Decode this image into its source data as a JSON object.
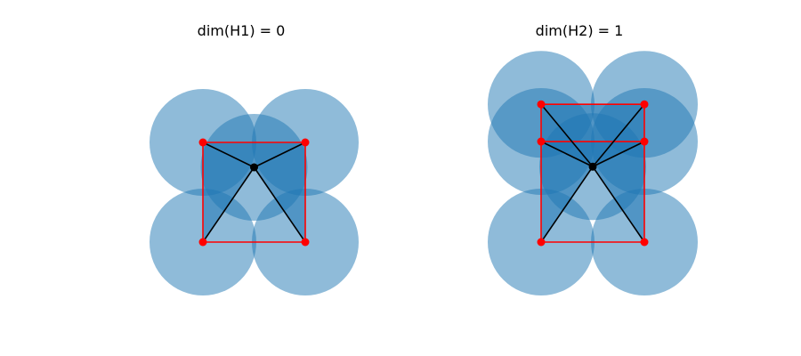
{
  "panels": [
    {
      "title": "dim(H1) = 0",
      "vertices": [
        [
          0,
          0
        ],
        [
          1,
          0
        ],
        [
          0,
          1
        ],
        [
          1,
          1
        ]
      ],
      "center": [
        0.5,
        0.75
      ],
      "square_edges": [
        [
          0,
          1
        ],
        [
          1,
          3
        ],
        [
          3,
          2
        ],
        [
          2,
          0
        ]
      ],
      "filled_triangles": [
        [
          2,
          3,
          "c"
        ],
        [
          0,
          2,
          "c"
        ],
        [
          1,
          3,
          "c"
        ]
      ],
      "spokes": [
        0,
        1,
        2,
        3
      ]
    },
    {
      "title": "dim(H2) = 1",
      "vertices": [
        [
          0,
          0
        ],
        [
          1,
          0
        ],
        [
          0,
          1
        ],
        [
          1,
          1
        ],
        [
          0,
          1.37
        ],
        [
          1,
          1.37
        ]
      ],
      "center": [
        0.5,
        0.75
      ],
      "square_edges": [
        [
          0,
          1
        ],
        [
          1,
          3
        ],
        [
          3,
          2
        ],
        [
          2,
          0
        ],
        [
          2,
          4
        ],
        [
          4,
          5
        ],
        [
          5,
          3
        ]
      ],
      "filled_triangles": [
        [
          2,
          3,
          "c"
        ],
        [
          0,
          2,
          "c"
        ],
        [
          1,
          3,
          "c"
        ],
        [
          4,
          5,
          "c"
        ],
        [
          2,
          4,
          "c"
        ],
        [
          3,
          5,
          "c"
        ]
      ],
      "spokes": [
        0,
        1,
        2,
        3,
        4,
        5
      ]
    }
  ],
  "colors": {
    "ball": "#1f77b4",
    "edge": "#ff0000",
    "vertex": "#ff0000",
    "spoke": "#000000",
    "center": "#000000"
  }
}
